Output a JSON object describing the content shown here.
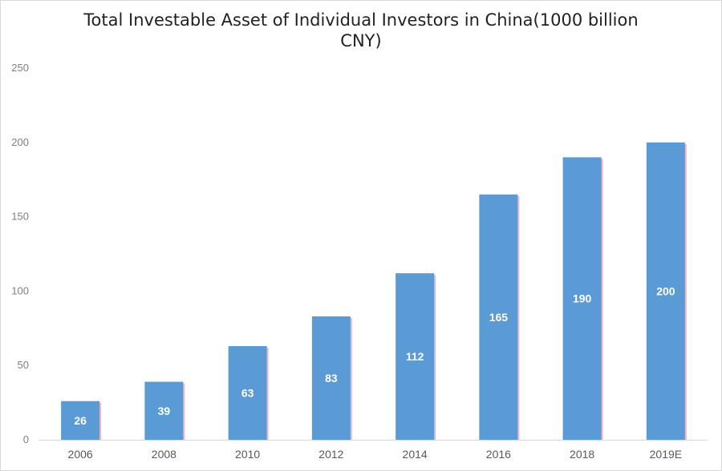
{
  "chart_data": {
    "type": "bar",
    "title": "Total Investable Asset of Individual Investors in China(1000 billion CNY)",
    "categories": [
      "2006",
      "2008",
      "2010",
      "2012",
      "2014",
      "2016",
      "2018",
      "2019E"
    ],
    "values": [
      26,
      39,
      63,
      83,
      112,
      165,
      190,
      200
    ],
    "data_labels": [
      "26",
      "39",
      "63",
      "83",
      "112",
      "165",
      "190",
      "200"
    ],
    "ylim": [
      0,
      250
    ],
    "yticks": [
      0,
      50,
      100,
      150,
      200,
      250
    ],
    "xlabel": "",
    "ylabel": "",
    "grid": false,
    "legend": "none",
    "colors": {
      "bar": "#5b9bd5",
      "bar_shadow": "#f4b6c2",
      "axis": "#d9d9d9"
    }
  }
}
